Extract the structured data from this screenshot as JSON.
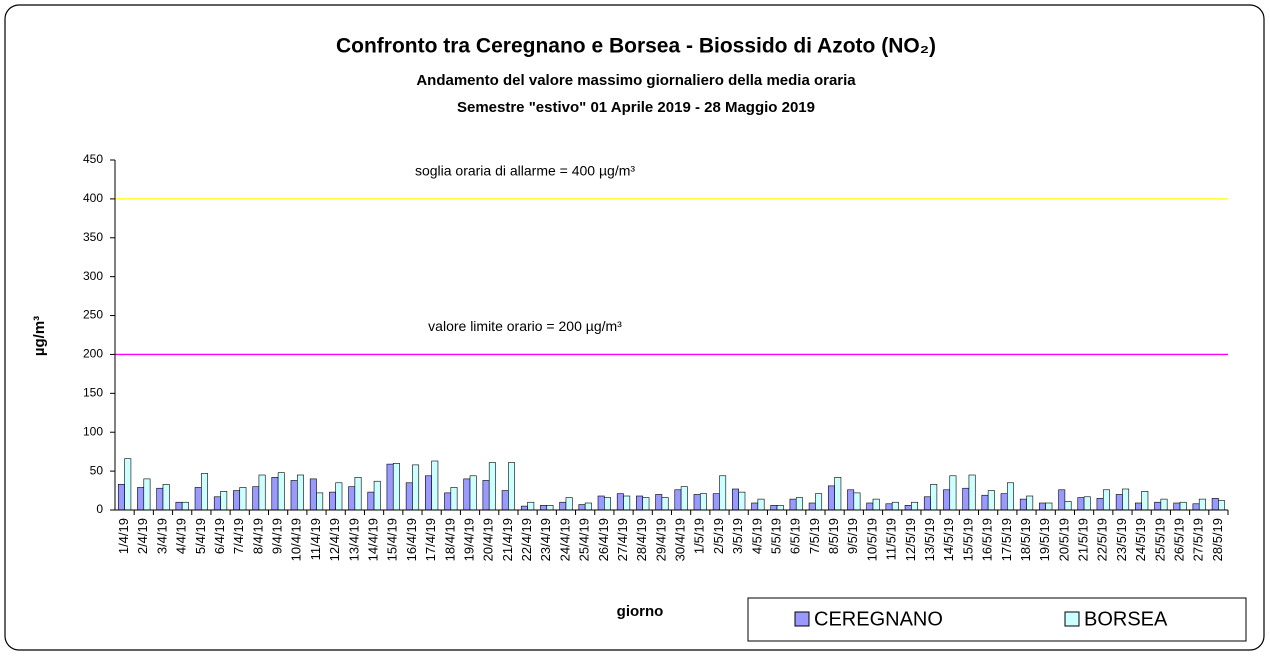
{
  "chart_data": {
    "type": "bar",
    "title": "Confronto tra Ceregnano e Borsea - Biossido di Azoto (NO₂)",
    "subtitle": [
      "Andamento del valore massimo giornaliero della media oraria",
      "Semestre \"estivo\" 01 Aprile 2019 - 28 Maggio 2019"
    ],
    "x_label": "giorno",
    "y_label": "µg/m³",
    "categories": [
      "1/4/19",
      "2/4/19",
      "3/4/19",
      "4/4/19",
      "5/4/19",
      "6/4/19",
      "7/4/19",
      "8/4/19",
      "9/4/19",
      "10/4/19",
      "11/4/19",
      "12/4/19",
      "13/4/19",
      "14/4/19",
      "15/4/19",
      "16/4/19",
      "17/4/19",
      "18/4/19",
      "19/4/19",
      "20/4/19",
      "21/4/19",
      "22/4/19",
      "23/4/19",
      "24/4/19",
      "25/4/19",
      "26/4/19",
      "27/4/19",
      "28/4/19",
      "29/4/19",
      "30/4/19",
      "1/5/19",
      "2/5/19",
      "3/5/19",
      "4/5/19",
      "5/5/19",
      "6/5/19",
      "7/5/19",
      "8/5/19",
      "9/5/19",
      "10/5/19",
      "11/5/19",
      "12/5/19",
      "13/5/19",
      "14/5/19",
      "15/5/19",
      "16/5/19",
      "17/5/19",
      "18/5/19",
      "19/5/19",
      "20/5/19",
      "21/5/19",
      "22/5/19",
      "23/5/19",
      "24/5/19",
      "25/5/19",
      "26/5/19",
      "27/5/19",
      "28/5/19"
    ],
    "series": [
      {
        "name": "CEREGNANO",
        "color": "#9999ff",
        "values": [
          33,
          29,
          28,
          10,
          29,
          17,
          25,
          30,
          42,
          38,
          40,
          23,
          30,
          23,
          59,
          35,
          44,
          22,
          40,
          38,
          25,
          5,
          6,
          10,
          7,
          18,
          21,
          18,
          20,
          26,
          20,
          21,
          27,
          9,
          6,
          14,
          9,
          31,
          26,
          9,
          8,
          6,
          17,
          26,
          28,
          19,
          21,
          14,
          9,
          26,
          16,
          15,
          20,
          9,
          10,
          9,
          8,
          15
        ]
      },
      {
        "name": "BORSEA",
        "color": "#ccffff",
        "values": [
          66,
          40,
          33,
          10,
          47,
          24,
          29,
          45,
          48,
          45,
          22,
          35,
          42,
          37,
          60,
          58,
          63,
          29,
          44,
          61,
          61,
          10,
          6,
          16,
          9,
          16,
          18,
          16,
          16,
          30,
          21,
          44,
          23,
          14,
          6,
          16,
          21,
          42,
          22,
          14,
          10,
          10,
          33,
          44,
          45,
          25,
          35,
          18,
          9,
          11,
          17,
          26,
          27,
          24,
          14,
          10,
          14,
          12
        ]
      }
    ],
    "thresholds": [
      {
        "value": 400,
        "color": "#ffff00",
        "label": "soglia oraria di allarme = 400 µg/m³"
      },
      {
        "value": 200,
        "color": "#ff00ff",
        "label": "valore limite orario = 200 µg/m³"
      }
    ],
    "ylim": [
      0,
      450
    ],
    "yticks": [
      0,
      50,
      100,
      150,
      200,
      250,
      300,
      350,
      400,
      450
    ],
    "grid": false,
    "legend": "bottom-right"
  }
}
